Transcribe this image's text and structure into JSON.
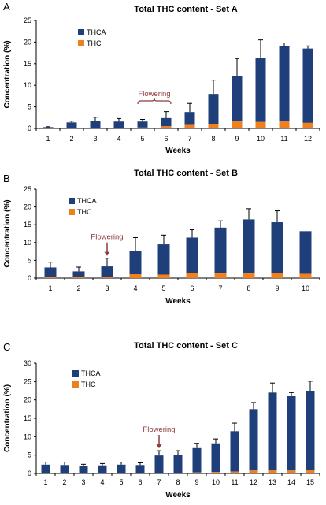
{
  "colors": {
    "thca": "#1F3F7A",
    "thc": "#F07F1E",
    "annotation": "#8B3A3A",
    "axis": "#000000"
  },
  "chart_data": [
    {
      "type": "bar",
      "stacked": true,
      "error_bars": true,
      "panel_label": "A",
      "title": "Total THC content - Set A",
      "xlabel": "Weeks",
      "ylabel": "Concentration (%)",
      "ylim": [
        0,
        25
      ],
      "yticks": [
        0,
        5,
        10,
        15,
        20,
        25
      ],
      "grid": false,
      "legend_position": "top-left",
      "categories": [
        "1",
        "2",
        "3",
        "4",
        "5",
        "6",
        "7",
        "8",
        "9",
        "10",
        "11",
        "12"
      ],
      "series": [
        {
          "name": "THC",
          "values": [
            0.0,
            0.1,
            0.1,
            0.1,
            0.2,
            0.5,
            0.8,
            1.0,
            1.6,
            1.5,
            1.6,
            1.3
          ]
        },
        {
          "name": "THCA",
          "values": [
            0.3,
            1.3,
            1.7,
            1.5,
            1.4,
            1.9,
            3.0,
            7.0,
            10.6,
            14.8,
            17.4,
            17.2
          ]
        }
      ],
      "error": [
        0.1,
        0.3,
        0.8,
        0.7,
        0.5,
        1.5,
        2.0,
        3.2,
        4.0,
        4.2,
        0.8,
        0.6
      ],
      "annotation": {
        "text": "Flowering",
        "style": "brace",
        "from": "5",
        "to": "6"
      }
    },
    {
      "type": "bar",
      "stacked": true,
      "error_bars": true,
      "panel_label": "B",
      "title": "Total THC content - Set B",
      "xlabel": "Weeks",
      "ylabel": "Concentration (%)",
      "ylim": [
        0,
        25
      ],
      "yticks": [
        0,
        5,
        10,
        15,
        20,
        25
      ],
      "grid": false,
      "legend_position": "top-left",
      "categories": [
        "1",
        "2",
        "3",
        "4",
        "5",
        "6",
        "7",
        "8",
        "9",
        "10"
      ],
      "series": [
        {
          "name": "THC",
          "values": [
            0.2,
            0.2,
            0.3,
            1.1,
            1.0,
            1.4,
            1.3,
            1.3,
            1.4,
            1.2
          ]
        },
        {
          "name": "THCA",
          "values": [
            2.8,
            1.7,
            3.0,
            6.6,
            8.5,
            10.0,
            12.9,
            15.2,
            14.3,
            12.0
          ]
        }
      ],
      "error": [
        1.5,
        1.2,
        2.3,
        3.7,
        2.6,
        2.2,
        1.9,
        3.0,
        3.2,
        0
      ],
      "annotation": {
        "text": "Flowering",
        "style": "arrow",
        "at": "3"
      }
    },
    {
      "type": "bar",
      "stacked": true,
      "error_bars": true,
      "panel_label": "C",
      "title": "Total THC content - Set C",
      "xlabel": "Weeks",
      "ylabel": "Concentration (%)",
      "ylim": [
        0,
        30
      ],
      "yticks": [
        0,
        5,
        10,
        15,
        20,
        25,
        30
      ],
      "grid": false,
      "legend_position": "top-left",
      "categories": [
        "1",
        "2",
        "3",
        "4",
        "5",
        "6",
        "7",
        "8",
        "9",
        "10",
        "11",
        "12",
        "13",
        "14",
        "15"
      ],
      "series": [
        {
          "name": "THC",
          "values": [
            0.1,
            0.1,
            0.1,
            0.1,
            0.1,
            0.1,
            0.2,
            0.2,
            0.3,
            0.4,
            0.5,
            0.8,
            1.0,
            0.8,
            0.9
          ]
        },
        {
          "name": "THCA",
          "values": [
            2.3,
            2.2,
            1.9,
            2.1,
            2.3,
            2.2,
            4.7,
            4.9,
            6.6,
            7.8,
            11.0,
            16.7,
            21.0,
            20.2,
            21.6
          ]
        }
      ],
      "error": [
        0.7,
        0.8,
        0.5,
        0.5,
        0.7,
        0.6,
        1.3,
        1.1,
        1.3,
        1.2,
        2.2,
        1.8,
        2.6,
        1.0,
        2.6
      ],
      "annotation": {
        "text": "Flowering",
        "style": "arrow",
        "at": "7"
      }
    }
  ]
}
